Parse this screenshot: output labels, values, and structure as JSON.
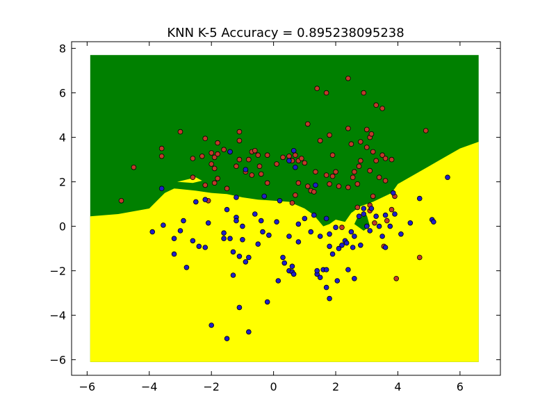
{
  "chart_data": {
    "type": "scatter",
    "title": "KNN K-5 Accuracy = 0.895238095238",
    "xlabel": "",
    "ylabel": "",
    "xlim": [
      -6.5,
      7.3
    ],
    "ylim": [
      -6.7,
      8.3
    ],
    "x_ticks": [
      -6,
      -4,
      -2,
      0,
      2,
      4,
      6
    ],
    "y_ticks": [
      -6,
      -4,
      -2,
      0,
      2,
      4,
      6,
      8
    ],
    "grid": false,
    "legend": "none",
    "colors": {
      "region_class_red": "#008000",
      "region_class_blue": "#ffff00",
      "point_red": "#c0392b",
      "point_blue": "#1f1fc8",
      "point_edge": "#000000"
    },
    "decision_region": {
      "x_range": [
        -5.9,
        6.6
      ],
      "y_range": [
        -6.1,
        7.7
      ],
      "boundary": [
        [
          -5.9,
          0.45
        ],
        [
          -5.0,
          0.55
        ],
        [
          -4.0,
          0.8
        ],
        [
          -3.5,
          1.5
        ],
        [
          -3.2,
          1.7
        ],
        [
          -2.5,
          1.6
        ],
        [
          -2.0,
          1.5
        ],
        [
          -1.5,
          1.45
        ],
        [
          -1.0,
          1.3
        ],
        [
          -0.5,
          1.2
        ],
        [
          0.0,
          1.15
        ],
        [
          0.5,
          1.1
        ],
        [
          1.0,
          0.8
        ],
        [
          1.3,
          0.5
        ],
        [
          1.6,
          0.0
        ],
        [
          1.8,
          0.1
        ],
        [
          2.0,
          0.3
        ],
        [
          2.3,
          0.2
        ],
        [
          2.5,
          0.6
        ],
        [
          2.8,
          0.9
        ],
        [
          3.2,
          1.1
        ],
        [
          3.5,
          1.3
        ],
        [
          3.8,
          1.5
        ],
        [
          4.0,
          1.9
        ],
        [
          4.5,
          2.3
        ],
        [
          5.0,
          2.7
        ],
        [
          5.5,
          3.1
        ],
        [
          6.0,
          3.5
        ],
        [
          6.6,
          3.8
        ]
      ],
      "islands": [
        {
          "class": "blue",
          "points": [
            [
              -3.1,
              2.0
            ],
            [
              -2.5,
              2.2
            ],
            [
              -2.3,
              2.05
            ],
            [
              -2.6,
              1.95
            ]
          ]
        },
        {
          "class": "red",
          "points": [
            [
              2.7,
              0.4
            ],
            [
              3.0,
              0.5
            ],
            [
              3.1,
              0.0
            ],
            [
              2.9,
              -0.2
            ],
            [
              2.6,
              0.1
            ]
          ]
        }
      ]
    },
    "series": [
      {
        "class": "red",
        "points": [
          [
            -4.9,
            1.15
          ],
          [
            -4.5,
            2.65
          ],
          [
            -3.6,
            3.5
          ],
          [
            -3.6,
            3.15
          ],
          [
            -3.0,
            4.25
          ],
          [
            -2.6,
            2.2
          ],
          [
            -2.6,
            3.05
          ],
          [
            -2.3,
            3.15
          ],
          [
            -2.2,
            3.95
          ],
          [
            -2.2,
            1.85
          ],
          [
            -2.1,
            1.15
          ],
          [
            -2.0,
            3.3
          ],
          [
            -2.0,
            2.8
          ],
          [
            -1.9,
            2.6
          ],
          [
            -1.9,
            3.1
          ],
          [
            -1.9,
            1.95
          ],
          [
            -1.8,
            3.75
          ],
          [
            -1.8,
            3.25
          ],
          [
            -1.8,
            2.15
          ],
          [
            -1.6,
            3.45
          ],
          [
            -1.5,
            1.7
          ],
          [
            -1.4,
            3.35
          ],
          [
            -1.2,
            2.7
          ],
          [
            -1.1,
            3.0
          ],
          [
            -1.1,
            4.25
          ],
          [
            -1.1,
            3.85
          ],
          [
            -0.9,
            2.45
          ],
          [
            -0.8,
            3.0
          ],
          [
            -0.7,
            3.35
          ],
          [
            -0.7,
            2.3
          ],
          [
            -0.6,
            3.4
          ],
          [
            -0.5,
            3.2
          ],
          [
            -0.45,
            2.7
          ],
          [
            -0.4,
            2.35
          ],
          [
            -0.2,
            3.2
          ],
          [
            -0.2,
            1.95
          ],
          [
            0.1,
            2.8
          ],
          [
            0.3,
            3.1
          ],
          [
            0.5,
            3.15
          ],
          [
            0.6,
            2.95
          ],
          [
            0.6,
            1.05
          ],
          [
            0.7,
            3.2
          ],
          [
            0.7,
            1.4
          ],
          [
            0.8,
            2.95
          ],
          [
            0.8,
            1.95
          ],
          [
            0.9,
            3.05
          ],
          [
            1.0,
            2.85
          ],
          [
            1.1,
            4.6
          ],
          [
            1.1,
            1.8
          ],
          [
            1.2,
            1.6
          ],
          [
            1.3,
            1.55
          ],
          [
            1.35,
            2.45
          ],
          [
            1.4,
            6.2
          ],
          [
            1.5,
            3.85
          ],
          [
            1.7,
            6.0
          ],
          [
            1.7,
            2.3
          ],
          [
            1.8,
            4.1
          ],
          [
            1.8,
            1.9
          ],
          [
            1.9,
            3.2
          ],
          [
            1.9,
            2.25
          ],
          [
            2.0,
            2.45
          ],
          [
            2.1,
            1.8
          ],
          [
            2.4,
            6.65
          ],
          [
            2.4,
            4.4
          ],
          [
            2.4,
            1.75
          ],
          [
            2.5,
            3.7
          ],
          [
            2.55,
            2.2
          ],
          [
            2.6,
            2.45
          ],
          [
            2.7,
            1.9
          ],
          [
            2.75,
            2.7
          ],
          [
            2.8,
            2.95
          ],
          [
            2.8,
            3.8
          ],
          [
            2.9,
            6.0
          ],
          [
            3.0,
            4.35
          ],
          [
            3.0,
            3.55
          ],
          [
            3.1,
            4.0
          ],
          [
            3.1,
            2.5
          ],
          [
            3.15,
            4.15
          ],
          [
            3.2,
            3.35
          ],
          [
            3.3,
            5.45
          ],
          [
            3.3,
            2.95
          ],
          [
            3.4,
            2.2
          ],
          [
            3.5,
            5.3
          ],
          [
            3.5,
            3.2
          ],
          [
            3.6,
            3.05
          ],
          [
            3.6,
            2.05
          ],
          [
            3.8,
            0.75
          ],
          [
            3.8,
            3.0
          ],
          [
            3.9,
            1.35
          ],
          [
            3.1,
            0.7
          ],
          [
            3.25,
            0.15
          ],
          [
            3.55,
            -0.9
          ],
          [
            3.65,
            0.25
          ],
          [
            3.95,
            -2.35
          ],
          [
            4.7,
            -1.4
          ],
          [
            2.2,
            -0.05
          ],
          [
            2.7,
            0.85
          ],
          [
            4.9,
            4.3
          ],
          [
            3.2,
            1.35
          ],
          [
            3.1,
            0.95
          ]
        ]
      },
      {
        "class": "blue",
        "points": [
          [
            -3.9,
            -0.25
          ],
          [
            -3.6,
            1.7
          ],
          [
            -3.55,
            0.05
          ],
          [
            -3.2,
            -0.55
          ],
          [
            -3.2,
            -1.25
          ],
          [
            -3.0,
            -0.2
          ],
          [
            -2.9,
            0.25
          ],
          [
            -2.8,
            -1.85
          ],
          [
            -2.6,
            -0.65
          ],
          [
            -2.5,
            1.1
          ],
          [
            -2.4,
            -0.9
          ],
          [
            -2.2,
            1.2
          ],
          [
            -2.2,
            -0.95
          ],
          [
            -2.1,
            0.15
          ],
          [
            -2.0,
            -4.45
          ],
          [
            -1.6,
            -0.3
          ],
          [
            -1.6,
            -0.55
          ],
          [
            -1.5,
            0.75
          ],
          [
            -1.5,
            -5.05
          ],
          [
            -1.4,
            -0.55
          ],
          [
            -1.3,
            -1.15
          ],
          [
            -1.3,
            -2.2
          ],
          [
            -1.2,
            1.3
          ],
          [
            -1.2,
            0.4
          ],
          [
            -1.2,
            0.25
          ],
          [
            -1.1,
            -3.65
          ],
          [
            -1.1,
            -1.35
          ],
          [
            -1.0,
            0.0
          ],
          [
            -1.0,
            -0.6
          ],
          [
            -0.9,
            -1.6
          ],
          [
            -0.9,
            2.55
          ],
          [
            -0.8,
            -1.4
          ],
          [
            -0.8,
            -4.75
          ],
          [
            -0.6,
            0.55
          ],
          [
            -0.5,
            -0.8
          ],
          [
            -0.4,
            0.25
          ],
          [
            -0.35,
            -0.25
          ],
          [
            -0.3,
            1.35
          ],
          [
            -0.2,
            -3.4
          ],
          [
            -0.15,
            -0.4
          ],
          [
            0.1,
            0.2
          ],
          [
            0.15,
            -2.45
          ],
          [
            0.2,
            1.15
          ],
          [
            0.3,
            -1.4
          ],
          [
            0.35,
            -1.65
          ],
          [
            0.5,
            -0.45
          ],
          [
            0.5,
            -2.0
          ],
          [
            0.6,
            -1.8
          ],
          [
            0.6,
            -2.05
          ],
          [
            0.65,
            -2.15
          ],
          [
            0.65,
            3.4
          ],
          [
            0.7,
            2.65
          ],
          [
            0.8,
            -0.7
          ],
          [
            0.8,
            0.1
          ],
          [
            1.0,
            0.35
          ],
          [
            1.2,
            -0.25
          ],
          [
            1.3,
            0.5
          ],
          [
            1.4,
            -2.15
          ],
          [
            1.4,
            -2.0
          ],
          [
            1.5,
            -0.45
          ],
          [
            1.5,
            -2.3
          ],
          [
            1.6,
            -1.95
          ],
          [
            1.7,
            -2.75
          ],
          [
            1.7,
            -1.95
          ],
          [
            1.8,
            -0.35
          ],
          [
            1.8,
            -0.9
          ],
          [
            1.8,
            -3.25
          ],
          [
            1.9,
            -1.25
          ],
          [
            2.0,
            -0.05
          ],
          [
            2.05,
            -2.45
          ],
          [
            2.1,
            -1.0
          ],
          [
            2.2,
            -0.85
          ],
          [
            2.3,
            -0.65
          ],
          [
            2.35,
            -0.75
          ],
          [
            2.4,
            -1.95
          ],
          [
            2.5,
            -0.25
          ],
          [
            2.55,
            -0.95
          ],
          [
            2.6,
            -2.35
          ],
          [
            2.6,
            -0.45
          ],
          [
            2.75,
            0.45
          ],
          [
            2.8,
            -0.85
          ],
          [
            2.9,
            0.55
          ],
          [
            3.0,
            0.0
          ],
          [
            3.1,
            -0.2
          ],
          [
            3.15,
            0.8
          ],
          [
            3.3,
            0.45
          ],
          [
            3.4,
            0.0
          ],
          [
            3.5,
            -0.45
          ],
          [
            3.6,
            0.5
          ],
          [
            3.6,
            -0.95
          ],
          [
            3.9,
            0.55
          ],
          [
            4.1,
            -0.35
          ],
          [
            4.4,
            0.15
          ],
          [
            4.7,
            1.25
          ],
          [
            5.1,
            0.3
          ],
          [
            5.15,
            0.2
          ],
          [
            5.6,
            2.2
          ],
          [
            1.35,
            1.85
          ],
          [
            1.7,
            0.35
          ],
          [
            2.9,
            0.8
          ],
          [
            3.75,
            0.0
          ],
          [
            -1.4,
            3.35
          ],
          [
            0.5,
            2.95
          ],
          [
            3.85,
            1.5
          ]
        ]
      }
    ]
  }
}
